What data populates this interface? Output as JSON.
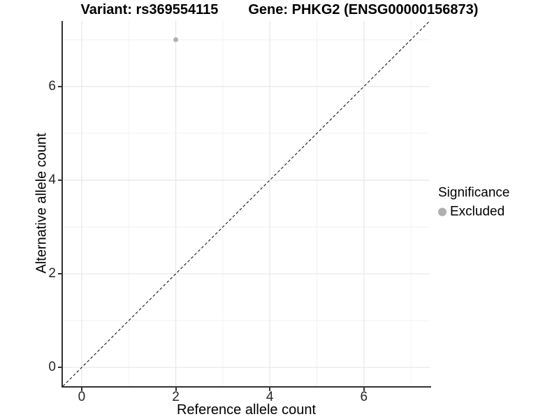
{
  "chart_data": {
    "type": "scatter",
    "title_left": "Variant: rs369554115",
    "title_right": "Gene: PHKG2 (ENSG00000156873)",
    "xlabel": "Reference allele count",
    "ylabel": "Alternative allele count",
    "xlim": [
      -0.4,
      7.4
    ],
    "ylim": [
      -0.4,
      7.4
    ],
    "x_ticks": [
      0,
      2,
      4,
      6
    ],
    "y_ticks": [
      0,
      2,
      4,
      6
    ],
    "x_minor_gridlines": [
      1,
      3,
      5,
      7
    ],
    "y_minor_gridlines": [
      1,
      3,
      5,
      7
    ],
    "grid": "major and minor light grey gridlines on white panel",
    "identity_line": {
      "equation": "y = x",
      "style": "dashed",
      "color": "#000000"
    },
    "series": [
      {
        "name": "Excluded",
        "marker": "circle",
        "color": "#b0b0b0",
        "points": [
          {
            "x": 2,
            "y": 7
          }
        ]
      }
    ],
    "legend": {
      "title": "Significance",
      "position": "right",
      "entries": [
        {
          "label": "Excluded",
          "marker_color": "#b0b0b0"
        }
      ]
    },
    "colors": {
      "axis_line": "#333333",
      "grid_major": "#e7e7e7",
      "grid_minor": "#f2f2f2",
      "tick_text": "#262626",
      "title_text": "#000000"
    }
  }
}
